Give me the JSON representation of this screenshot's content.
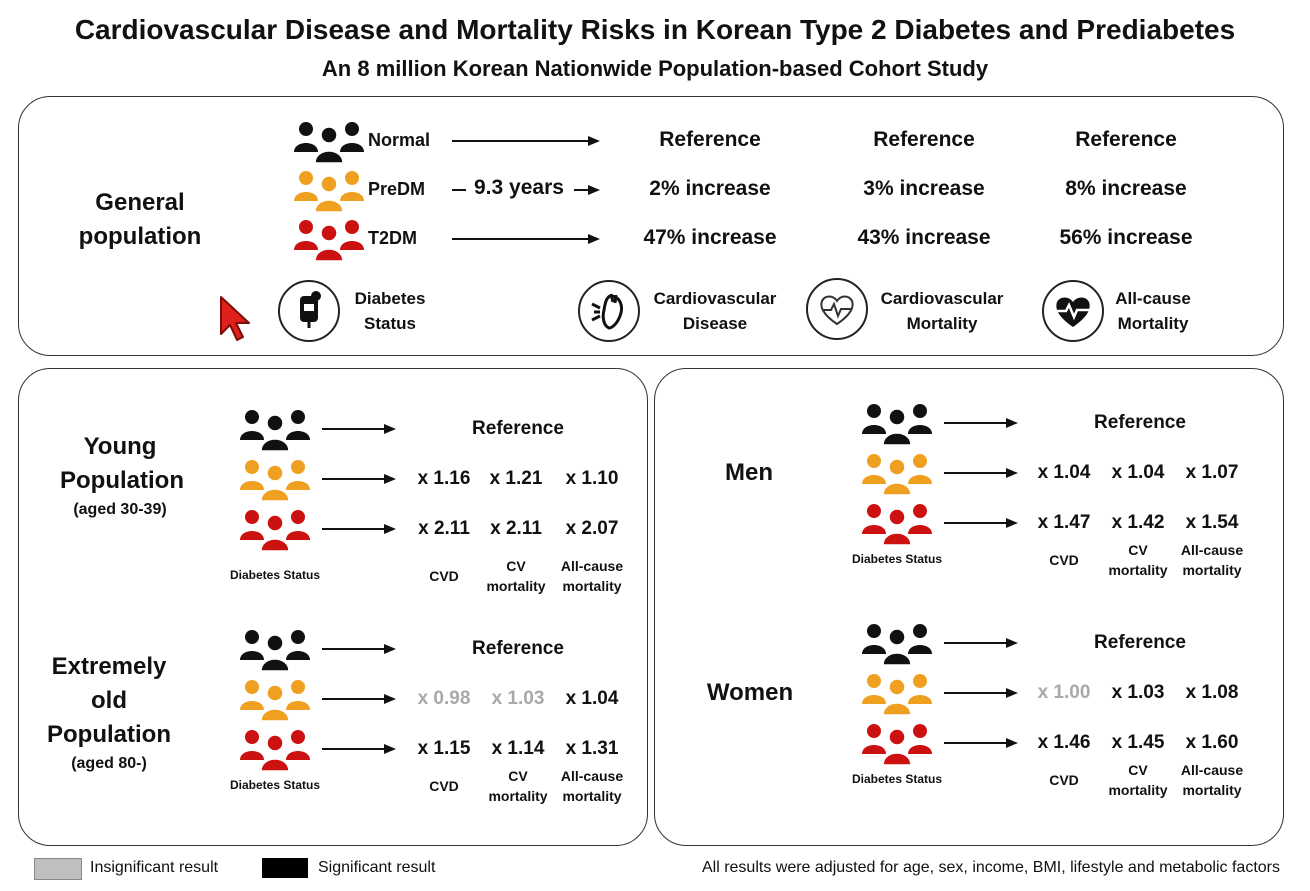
{
  "title": "Cardiovascular Disease and Mortality Risks in Korean Type 2 Diabetes and Prediabetes",
  "subtitle": "An 8 million Korean Nationwide Population-based Cohort Study",
  "general": {
    "label_line1": "General",
    "label_line2": "population",
    "groups": [
      {
        "name": "Normal",
        "color": "#111111",
        "arrow_label": "",
        "cvd": "Reference",
        "cv_mortality": "Reference",
        "all_cause": "Reference"
      },
      {
        "name": "PreDM",
        "color": "#f0a020",
        "arrow_label": "9.3 years",
        "cvd": "2%  increase",
        "cv_mortality": "3% increase",
        "all_cause": "8% increase"
      },
      {
        "name": "T2DM",
        "color": "#cc1111",
        "arrow_label": "",
        "cvd": "47% increase",
        "cv_mortality": "43% increase",
        "all_cause": "56% increase"
      }
    ],
    "icons": [
      {
        "icon": "glucose-meter-icon",
        "line1": "Diabetes",
        "line2": "Status"
      },
      {
        "icon": "heart-anatomy-icon",
        "line1": "Cardiovascular",
        "line2": "Disease"
      },
      {
        "icon": "heart-ecg-icon",
        "line1": "Cardiovascular",
        "line2": "Mortality"
      },
      {
        "icon": "heart-pulse-filled-icon",
        "line1": "All-cause",
        "line2": "Mortality"
      }
    ]
  },
  "subgroups": [
    {
      "id": "young",
      "label_line1": "Young",
      "label_line2": "Population",
      "label_note": "(aged 30-39)",
      "reference": "Reference",
      "prediabetes": [
        {
          "value": "x 1.16",
          "significant": true
        },
        {
          "value": "x 1.21",
          "significant": true
        },
        {
          "value": "x 1.10",
          "significant": true
        }
      ],
      "diabetes": [
        {
          "value": "x 2.11",
          "significant": true
        },
        {
          "value": "x 2.11",
          "significant": true
        },
        {
          "value": "x 2.07",
          "significant": true
        }
      ]
    },
    {
      "id": "old",
      "label_line1": "Extremely old",
      "label_line2": "Population",
      "label_note": "(aged 80-)",
      "reference": "Reference",
      "prediabetes": [
        {
          "value": "x 0.98",
          "significant": false
        },
        {
          "value": "x 1.03",
          "significant": false
        },
        {
          "value": "x 1.04",
          "significant": true
        }
      ],
      "diabetes": [
        {
          "value": "x 1.15",
          "significant": true
        },
        {
          "value": "x 1.14",
          "significant": true
        },
        {
          "value": "x 1.31",
          "significant": true
        }
      ]
    },
    {
      "id": "men",
      "label_line1": "Men",
      "label_line2": "",
      "label_note": "",
      "reference": "Reference",
      "prediabetes": [
        {
          "value": "x 1.04",
          "significant": true
        },
        {
          "value": "x 1.04",
          "significant": true
        },
        {
          "value": "x 1.07",
          "significant": true
        }
      ],
      "diabetes": [
        {
          "value": "x 1.47",
          "significant": true
        },
        {
          "value": "x 1.42",
          "significant": true
        },
        {
          "value": "x 1.54",
          "significant": true
        }
      ]
    },
    {
      "id": "women",
      "label_line1": "Women",
      "label_line2": "",
      "label_note": "",
      "reference": "Reference",
      "prediabetes": [
        {
          "value": "x 1.00",
          "significant": false
        },
        {
          "value": "x 1.03",
          "significant": true
        },
        {
          "value": "x 1.08",
          "significant": true
        }
      ],
      "diabetes": [
        {
          "value": "x 1.46",
          "significant": true
        },
        {
          "value": "x 1.45",
          "significant": true
        },
        {
          "value": "x 1.60",
          "significant": true
        }
      ]
    }
  ],
  "column_labels": {
    "diabetes_status": "Diabetes Status",
    "cvd": "CVD",
    "cv_line1": "CV",
    "cv_line2": "mortality",
    "all_line1": "All-cause",
    "all_line2": "mortality"
  },
  "legend": {
    "insignificant": "Insignificant result",
    "significant": "Significant result",
    "insignificant_color": "#bfbfbf",
    "significant_color": "#000000",
    "footnote": "All results were adjusted for age, sex, income, BMI, lifestyle and metabolic factors"
  },
  "colors": {
    "normal": "#111111",
    "predm": "#f0a020",
    "t2dm": "#cc1111",
    "insignificant_text": "#a9a9a9",
    "cursor": "#e0201a"
  }
}
